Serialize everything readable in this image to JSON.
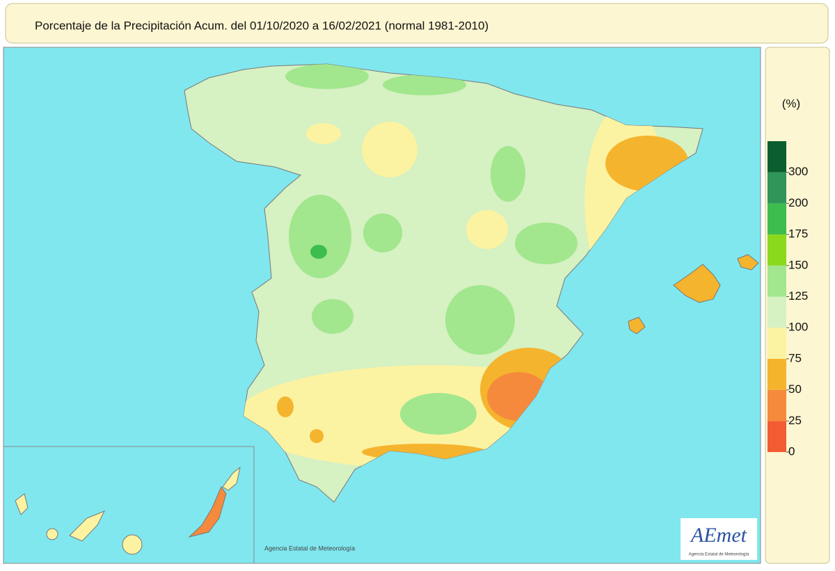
{
  "title": "Porcentaje de la Precipitación Acum. del 01/10/2020 a  16/02/2021  (normal 1981-2010)",
  "legend": {
    "unit": "(%)",
    "ticks": [
      0,
      25,
      50,
      75,
      100,
      125,
      150,
      175,
      200,
      300
    ],
    "colors": [
      "#f25c32",
      "#f58a3c",
      "#f5b42e",
      "#fbf3a2",
      "#d6f1c2",
      "#a2e68e",
      "#8cd81c",
      "#3dbd4e",
      "#2f9558",
      "#0b5e30"
    ]
  },
  "credit": "Agencia Estatal de Meteorología",
  "logo": {
    "name": "AEmet",
    "subtitle": "Agencia Estatal de Meteorología"
  }
}
